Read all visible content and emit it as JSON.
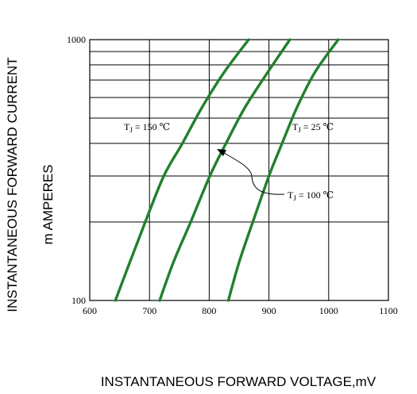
{
  "chart_data": {
    "type": "line",
    "title": "",
    "xlabel": "INSTANTANEOUS FORWARD VOLTAGE,mV",
    "ylabel_line1": "INSTANTANEOUS FORWARD CURRENT",
    "ylabel_line2": "m AMPERES",
    "x_scale": "linear",
    "y_scale": "log",
    "xlim": [
      600,
      1100
    ],
    "ylim": [
      100,
      1000
    ],
    "x_ticks": [
      600,
      700,
      800,
      900,
      1000,
      1100
    ],
    "x_tick_labels": [
      "600",
      "700",
      "800",
      "900",
      "1000",
      "1100"
    ],
    "y_tick_labels": [
      "100",
      "1000"
    ],
    "grid": true,
    "series_color": "#22802e",
    "series": [
      {
        "label_prefix": "T",
        "label_sub": "J",
        "label_suffix": "= 150 ℃",
        "x": [
          643,
          667,
          693,
          724,
          755,
          788,
          825,
          866
        ],
        "y": [
          100,
          140,
          200,
          300,
          400,
          550,
          750,
          1000
        ]
      },
      {
        "label_prefix": "T",
        "label_sub": "J",
        "label_suffix": "= 100 ℃",
        "x": [
          717,
          740,
          769,
          801,
          828,
          860,
          898,
          935
        ],
        "y": [
          100,
          140,
          200,
          300,
          400,
          550,
          750,
          1000
        ]
      },
      {
        "label_prefix": "T",
        "label_sub": "J",
        "label_suffix": "= 25 ℃",
        "x": [
          832,
          850,
          873,
          900,
          922,
          947,
          977,
          1016
        ],
        "y": [
          100,
          140,
          200,
          300,
          400,
          550,
          750,
          1000
        ]
      }
    ]
  }
}
